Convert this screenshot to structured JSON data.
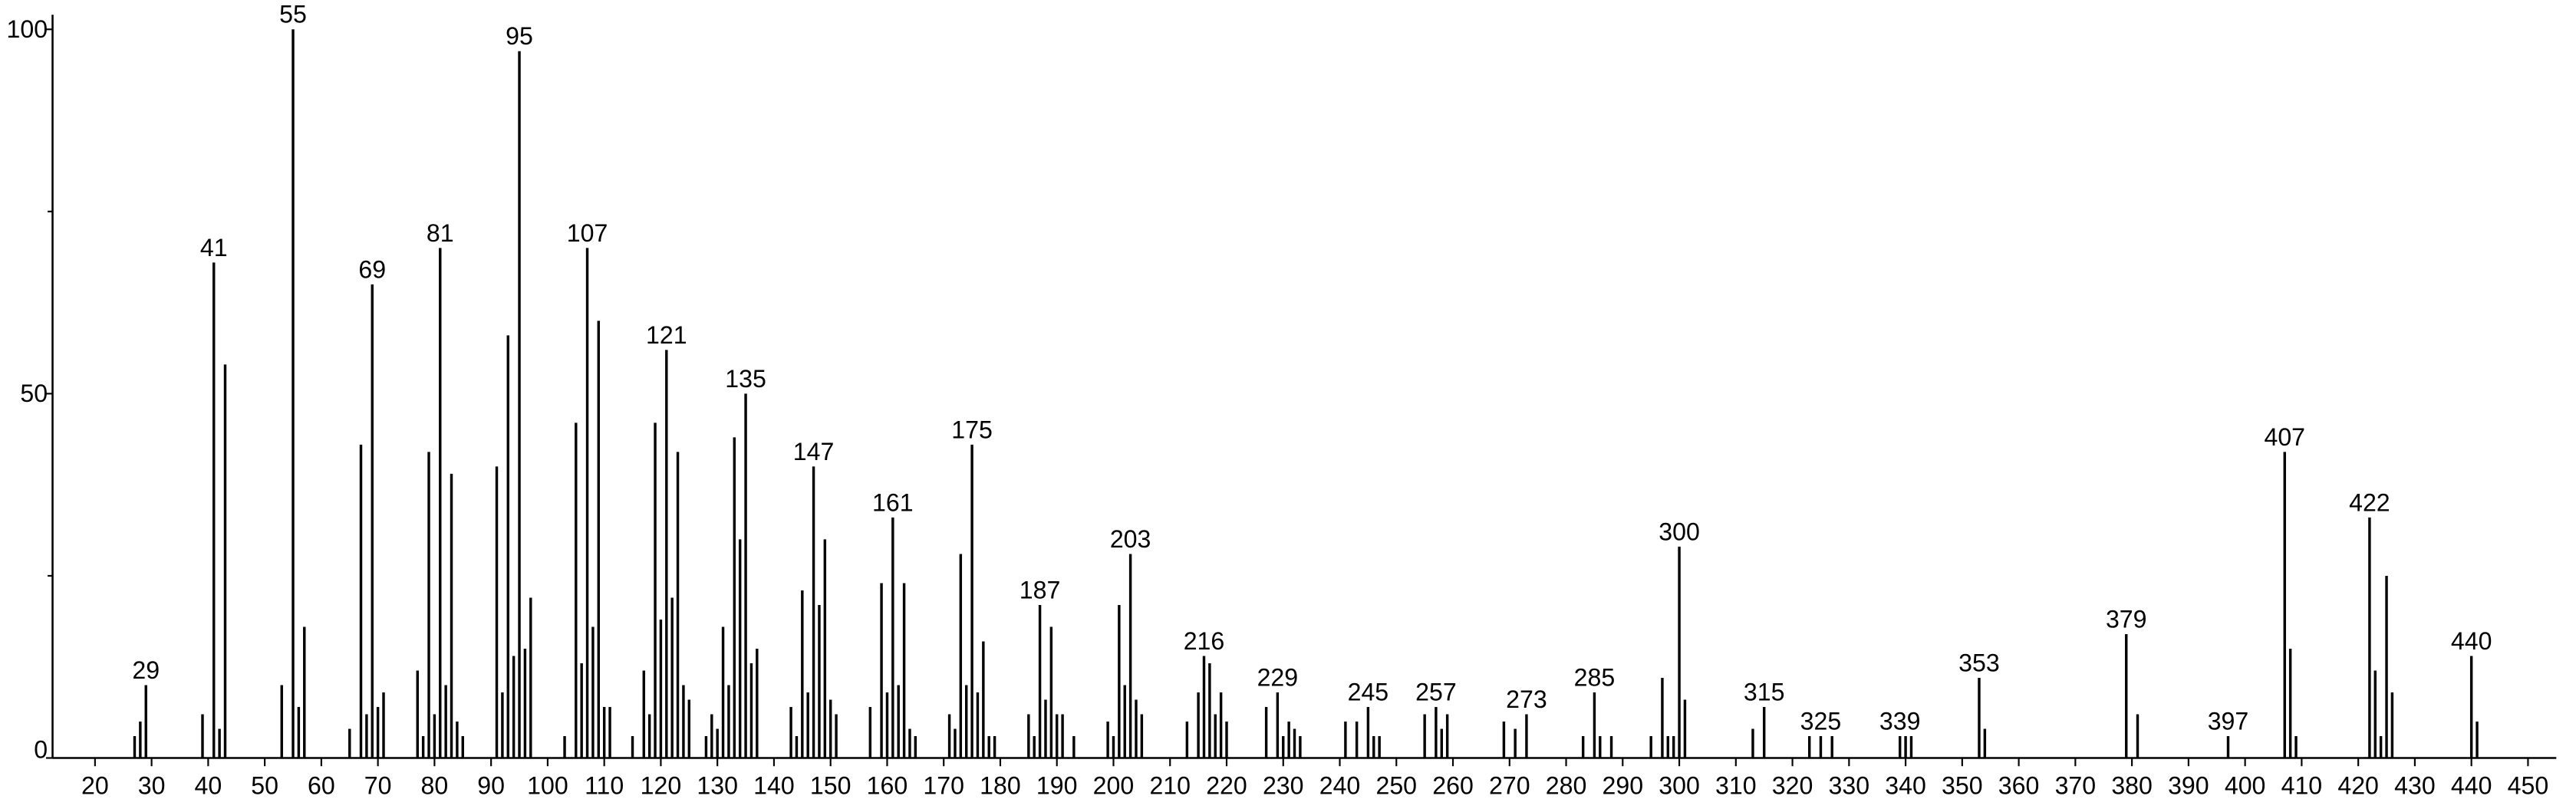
{
  "chart_data": {
    "type": "stem",
    "color": "#000000",
    "x": [
      27,
      28,
      29,
      39,
      41,
      42,
      43,
      53,
      55,
      56,
      57,
      65,
      67,
      68,
      69,
      70,
      71,
      77,
      78,
      79,
      80,
      81,
      82,
      83,
      84,
      85,
      91,
      92,
      93,
      94,
      95,
      96,
      97,
      103,
      105,
      106,
      107,
      108,
      109,
      110,
      111,
      115,
      117,
      118,
      119,
      120,
      121,
      122,
      123,
      124,
      125,
      128,
      129,
      130,
      131,
      132,
      133,
      134,
      135,
      136,
      137,
      143,
      144,
      145,
      146,
      147,
      148,
      149,
      150,
      151,
      157,
      159,
      160,
      161,
      162,
      163,
      164,
      165,
      171,
      172,
      173,
      174,
      175,
      176,
      177,
      178,
      179,
      185,
      186,
      187,
      188,
      189,
      190,
      191,
      193,
      199,
      200,
      201,
      202,
      203,
      204,
      205,
      213,
      215,
      216,
      217,
      218,
      219,
      220,
      227,
      229,
      230,
      231,
      232,
      233,
      241,
      243,
      245,
      246,
      247,
      255,
      257,
      258,
      259,
      269,
      271,
      273,
      283,
      285,
      286,
      288,
      295,
      297,
      298,
      299,
      300,
      301,
      313,
      315,
      323,
      325,
      327,
      339,
      340,
      341,
      353,
      354,
      379,
      381,
      397,
      407,
      408,
      409,
      422,
      423,
      424,
      425,
      426,
      440,
      441
    ],
    "values": [
      3,
      5,
      10,
      6,
      68,
      4,
      54,
      10,
      100,
      7,
      18,
      4,
      43,
      6,
      65,
      7,
      9,
      12,
      3,
      42,
      6,
      70,
      10,
      39,
      5,
      3,
      40,
      9,
      58,
      14,
      97,
      15,
      22,
      3,
      46,
      13,
      70,
      18,
      60,
      7,
      7,
      3,
      12,
      6,
      46,
      19,
      56,
      22,
      42,
      10,
      8,
      3,
      6,
      4,
      18,
      10,
      44,
      30,
      50,
      13,
      15,
      7,
      3,
      23,
      9,
      40,
      21,
      30,
      8,
      6,
      7,
      24,
      9,
      33,
      10,
      24,
      4,
      3,
      6,
      4,
      28,
      10,
      43,
      9,
      16,
      3,
      3,
      6,
      3,
      21,
      8,
      18,
      6,
      6,
      3,
      5,
      3,
      21,
      10,
      28,
      8,
      6,
      5,
      9,
      14,
      13,
      6,
      9,
      5,
      7,
      9,
      3,
      5,
      4,
      3,
      5,
      5,
      7,
      3,
      3,
      6,
      7,
      4,
      6,
      5,
      4,
      6,
      3,
      9,
      3,
      3,
      3,
      11,
      3,
      3,
      29,
      8,
      4,
      7,
      3,
      3,
      3,
      3,
      3,
      3,
      11,
      4,
      17,
      6,
      3,
      42,
      15,
      3,
      33,
      12,
      3,
      25,
      9,
      14,
      5
    ],
    "annotations": [
      29,
      41,
      55,
      69,
      81,
      95,
      107,
      121,
      135,
      147,
      161,
      175,
      187,
      203,
      216,
      229,
      245,
      257,
      273,
      285,
      300,
      315,
      325,
      339,
      353,
      379,
      397,
      407,
      422,
      440
    ],
    "xlim": [
      12.5,
      455
    ],
    "xticks": [
      20,
      30,
      40,
      50,
      60,
      70,
      80,
      90,
      100,
      110,
      120,
      130,
      140,
      150,
      160,
      170,
      180,
      190,
      200,
      210,
      220,
      230,
      240,
      250,
      260,
      270,
      280,
      290,
      300,
      310,
      320,
      330,
      340,
      350,
      360,
      370,
      380,
      390,
      400,
      410,
      420,
      430,
      440,
      450
    ],
    "ylim": [
      0,
      102
    ],
    "yticks": [
      0,
      50,
      100
    ],
    "yminorticks": [
      25,
      75
    ]
  }
}
